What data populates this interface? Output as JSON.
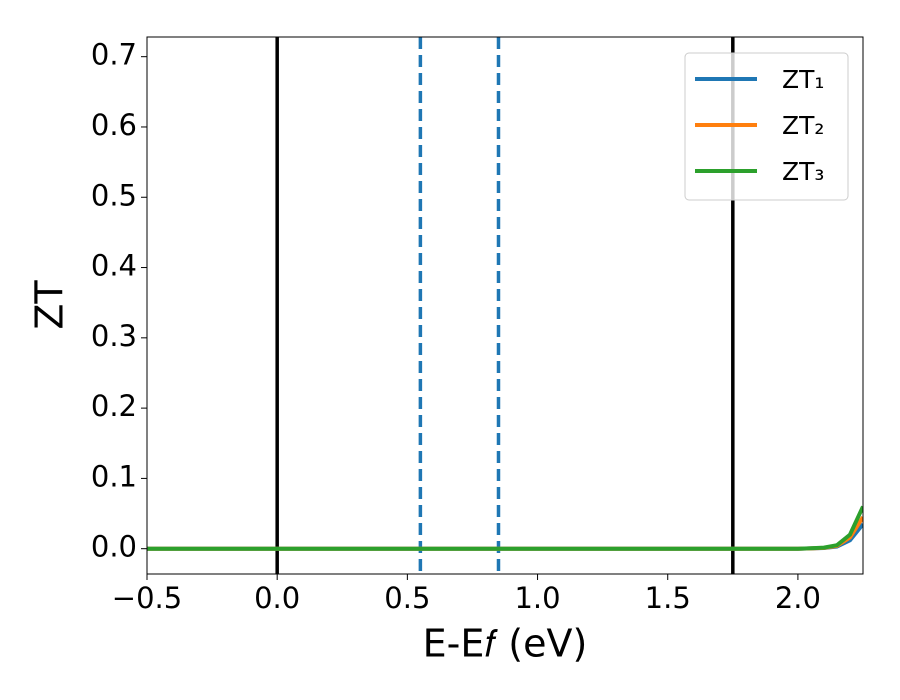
{
  "chart_data": {
    "type": "line",
    "xlabel": "E-E𝑓 (eV)",
    "ylabel": "ZT",
    "x": [
      -0.5,
      0,
      0.5,
      1.0,
      1.5,
      2.0,
      2.05,
      2.1,
      2.15,
      2.2,
      2.25
    ],
    "series": [
      {
        "name": "ZT₁",
        "color": "#1f77b4",
        "values": [
          0,
          0,
          0,
          0,
          0,
          0,
          0.0005,
          0.001,
          0.003,
          0.012,
          0.035
        ]
      },
      {
        "name": "ZT₂",
        "color": "#ff7f0e",
        "values": [
          0,
          0,
          0,
          0,
          0,
          0,
          0.0005,
          0.0012,
          0.004,
          0.016,
          0.045
        ]
      },
      {
        "name": "ZT₃",
        "color": "#2ca02c",
        "values": [
          0,
          0,
          0,
          0,
          0,
          0,
          0.0006,
          0.0015,
          0.005,
          0.02,
          0.06
        ]
      }
    ],
    "vlines": [
      {
        "x": 0,
        "color": "#000000",
        "style": "solid"
      },
      {
        "x": 0.55,
        "color": "#1f77b4",
        "style": "dashed"
      },
      {
        "x": 0.85,
        "color": "#1f77b4",
        "style": "dashed"
      },
      {
        "x": 1.75,
        "color": "#000000",
        "style": "solid"
      }
    ],
    "xlim": [
      -0.5,
      2.25
    ],
    "ylim": [
      -0.036,
      0.728
    ],
    "xticks": [
      {
        "value": -0.5,
        "label": "−0.5"
      },
      {
        "value": 0,
        "label": "0.0"
      },
      0.5,
      {
        "value": 1.0,
        "label": "1.0"
      },
      1.5,
      {
        "value": 2.0,
        "label": "2.0"
      }
    ],
    "yticks": [
      {
        "value": 0,
        "label": "0.0"
      },
      0.1,
      0.2,
      0.3,
      0.4,
      0.5,
      0.6,
      0.7
    ],
    "legend": "upper right",
    "grid": false
  }
}
